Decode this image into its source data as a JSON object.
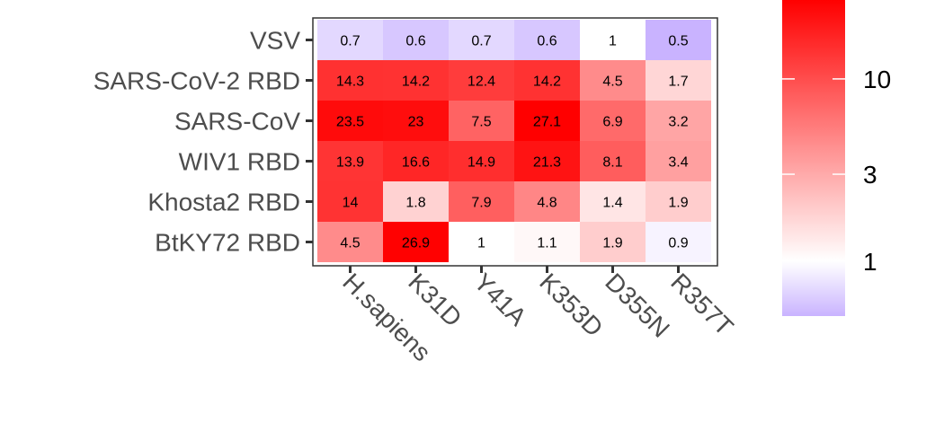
{
  "chart_data": {
    "type": "heatmap",
    "x_categories": [
      "H.sapiens",
      "K31D",
      "Y41A",
      "K353D",
      "D355N",
      "R357T"
    ],
    "y_categories": [
      "VSV",
      "SARS-CoV-2 RBD",
      "SARS-CoV",
      "WIV1 RBD",
      "Khosta2 RBD",
      "BtKY72 RBD"
    ],
    "values": [
      [
        0.7,
        0.6,
        0.7,
        0.6,
        1,
        0.5
      ],
      [
        14.3,
        14.2,
        12.4,
        14.2,
        4.5,
        1.7
      ],
      [
        23.5,
        23,
        7.5,
        27.1,
        6.9,
        3.2
      ],
      [
        13.9,
        16.6,
        14.9,
        21.3,
        8.1,
        3.4
      ],
      [
        14,
        1.8,
        7.9,
        4.8,
        1.4,
        1.9
      ],
      [
        4.5,
        26.9,
        1,
        1.1,
        1.9,
        0.9
      ]
    ],
    "value_labels": [
      [
        "0.7",
        "0.6",
        "0.7",
        "0.6",
        "1",
        "0.5"
      ],
      [
        "14.3",
        "14.2",
        "12.4",
        "14.2",
        "4.5",
        "1.7"
      ],
      [
        "23.5",
        "23",
        "7.5",
        "27.1",
        "6.9",
        "3.2"
      ],
      [
        "13.9",
        "16.6",
        "14.9",
        "21.3",
        "8.1",
        "3.4"
      ],
      [
        "14",
        "1.8",
        "7.9",
        "4.8",
        "1.4",
        "1.9"
      ],
      [
        "4.5",
        "26.9",
        "1",
        "1.1",
        "1.9",
        "0.9"
      ]
    ],
    "title": "",
    "xlabel": "",
    "ylabel": "",
    "legend": {
      "placement": "right",
      "scale": "log",
      "range": [
        0.5,
        27.1
      ],
      "ticks": [
        1,
        3,
        10
      ],
      "tick_labels": [
        "1",
        "3",
        "10"
      ],
      "colors": {
        "low": "#c9b3ff",
        "mid": "#ffffff",
        "high": "#ff0000",
        "midpoint": 1
      }
    },
    "grid": false
  }
}
